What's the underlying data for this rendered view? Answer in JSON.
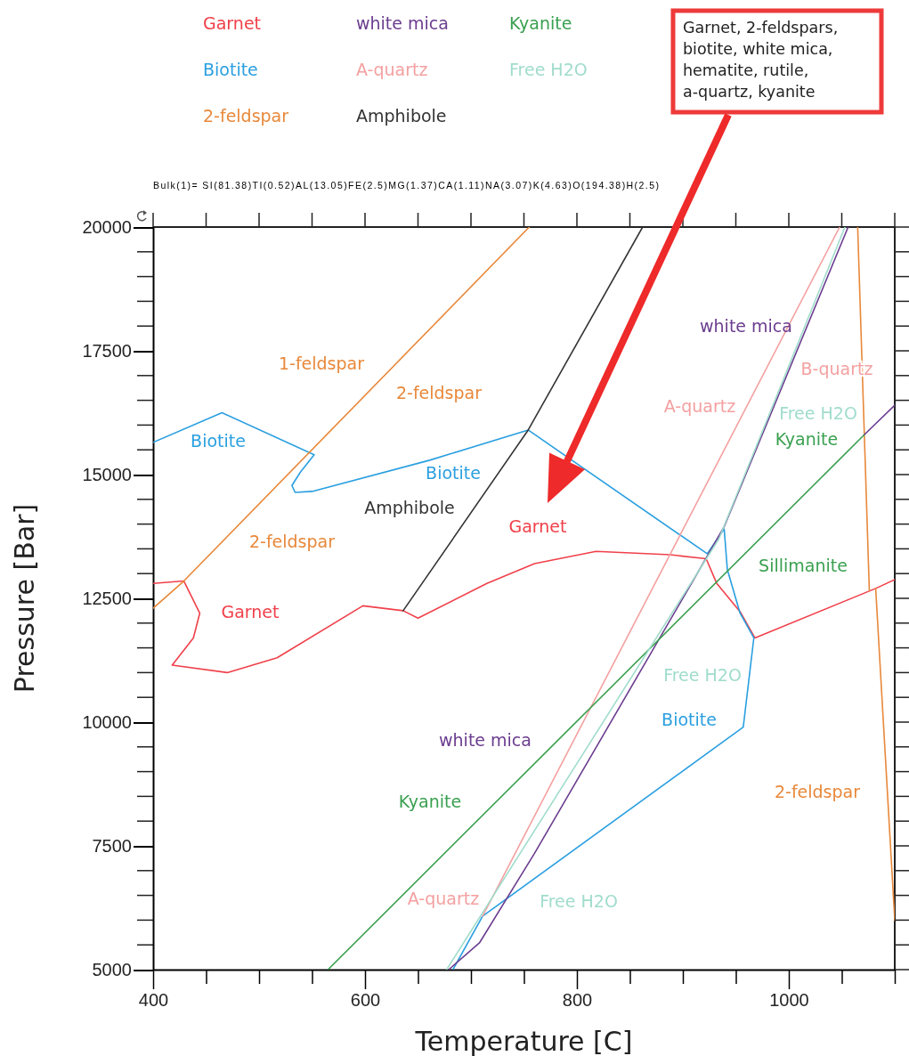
{
  "chart_data": {
    "type": "line",
    "subtitle": "Bulk(1)= SI(81.38)TI(0.52)AL(13.05)FE(2.5)MG(1.37)CA(1.11)NA(3.07)K(4.63)O(194.38)H(2.5)",
    "xlabel": "Temperature [C]",
    "ylabel": "Pressure [Bar]",
    "xlim": [
      400,
      1100
    ],
    "xticks": [
      400,
      {
        "value": 450,
        "label": null
      },
      {
        "value": 500,
        "label": null
      },
      {
        "value": 550,
        "label": null
      },
      600,
      {
        "value": 650,
        "label": null
      },
      {
        "value": 700,
        "label": null
      },
      {
        "value": 750,
        "label": null
      },
      800,
      {
        "value": 850,
        "label": null
      },
      {
        "value": 900,
        "label": null
      },
      {
        "value": 950,
        "label": null
      },
      1000,
      {
        "value": 1050,
        "label": null
      },
      {
        "value": 1100,
        "label": null
      }
    ],
    "ylim": [
      5000,
      20000
    ],
    "yticks": [
      5000,
      7500,
      10000,
      12500,
      15000,
      17500,
      20000
    ],
    "grid": false,
    "legend": "top",
    "marker": "none",
    "line_style": "solid",
    "series": [
      {
        "name": "Garnet",
        "color": "#f0404a",
        "x": [
          400,
          429,
          444,
          438,
          418,
          470,
          517,
          598,
          636,
          650,
          715,
          760,
          818,
          888,
          922,
          932,
          954,
          968,
          1082,
          1100
        ],
        "values": [
          12800,
          12850,
          12200,
          11700,
          11150,
          11000,
          11300,
          12350,
          12250,
          12100,
          12800,
          13200,
          13450,
          13380,
          13300,
          12800,
          12230,
          11700,
          12700,
          12880
        ]
      },
      {
        "name": "Biotite",
        "color": "#2a9fe0",
        "x": [
          400,
          465,
          552,
          539,
          531,
          534,
          550,
          661,
          754,
          923,
          939,
          942,
          954,
          967,
          957,
          711,
          683
        ],
        "values": [
          15650,
          16250,
          15400,
          15050,
          14780,
          14640,
          14660,
          15290,
          15900,
          13400,
          13900,
          13080,
          12200,
          11700,
          9900,
          6080,
          5000
        ]
      },
      {
        "name": "2-feldspar",
        "color": "#e8883a",
        "x": [
          400,
          429,
          755,
          null,
          1065,
          1076,
          null,
          1082,
          1100
        ],
        "values": [
          12300,
          12850,
          20000,
          null,
          20000,
          12660,
          null,
          12700,
          6000
        ]
      },
      {
        "name": "white mica",
        "color": "#6b3d8f",
        "x": [
          679,
          708,
          760,
          923,
          939,
          1056,
          null,
          1071,
          1100
        ],
        "values": [
          5000,
          5540,
          7350,
          13350,
          13950,
          20000,
          null,
          15800,
          16400
        ]
      },
      {
        "name": "A-quartz",
        "color": "#f4a0a0",
        "x": [
          711,
          1048
        ],
        "values": [
          6080,
          20000
        ]
      },
      {
        "name": "Amphibole",
        "color": "#333333",
        "x": [
          636,
          754,
          862
        ],
        "values": [
          12250,
          15900,
          20000
        ]
      },
      {
        "name": "Kyanite",
        "color": "#3aa050",
        "x": [
          565,
          1071
        ],
        "values": [
          5000,
          15800
        ]
      },
      {
        "name": "Free H2O",
        "color": "#a0dccc",
        "x": [
          677,
          934,
          1053
        ],
        "values": [
          5000,
          13700,
          20000
        ]
      }
    ],
    "annotations": [
      "1-feldspar",
      "2-feldspar",
      "Biotite",
      "Biotite",
      "Amphibole",
      "2-feldspar",
      "Garnet",
      "Garnet",
      "white mica",
      "B-quartz",
      "A-quartz",
      "Free H2O",
      "Kyanite",
      "Sillimanite",
      "Free H2O",
      "Biotite",
      "white mica",
      "Kyanite",
      "2-feldspar",
      "A-quartz",
      "Free H2O",
      "Garnet, 2-feldspars, biotite, white mica, hematite, rutile, a-quartz, kyanite"
    ]
  }
}
